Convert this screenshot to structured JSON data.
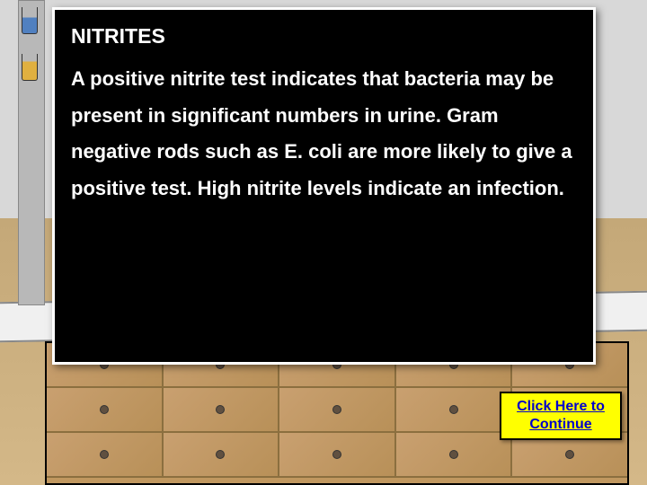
{
  "panel": {
    "title": "NITRITES",
    "body": "A positive nitrite test indicates that bacteria may be present in significant numbers in urine. Gram negative rods such as E. coli are more likely to give a positive test. High nitrite levels indicate an infection.",
    "background_color": "#000000",
    "text_color": "#ffffff",
    "border_color": "#ffffff",
    "title_fontsize": 23,
    "body_fontsize": 22
  },
  "continue_button": {
    "label": "Click Here to Continue",
    "background_color": "#ffff00",
    "text_color": "#0000cc",
    "border_color": "#000000"
  },
  "scene": {
    "wall_color": "#d8d8d8",
    "cabinet_color": "#c19860",
    "counter_color": "#f0f0f0"
  }
}
